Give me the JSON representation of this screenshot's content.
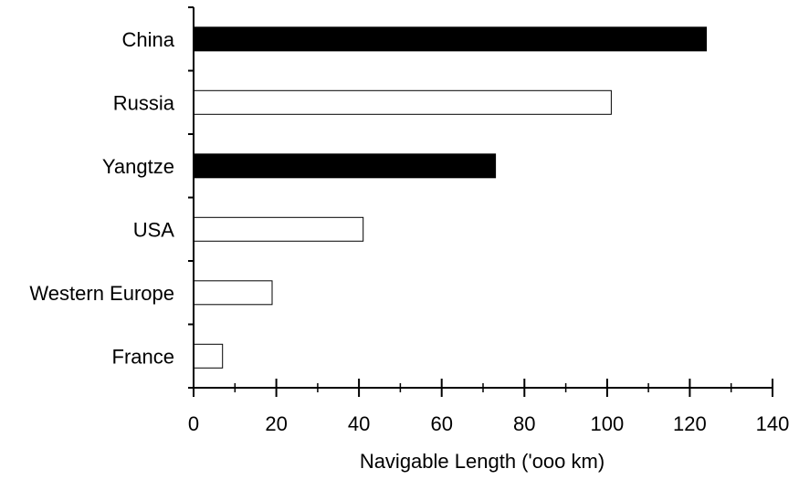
{
  "chart_data": {
    "type": "bar",
    "orientation": "horizontal",
    "categories": [
      "China",
      "Russia",
      "Yangtze",
      "USA",
      "Western Europe",
      "France"
    ],
    "values": [
      124,
      101,
      73,
      41,
      19,
      7
    ],
    "highlighted": [
      "China",
      "Yangtze"
    ],
    "title": "",
    "xlabel": "Navigable Length ('ooo km)",
    "ylabel": "",
    "xlim": [
      0,
      140
    ],
    "xticks": [
      0,
      20,
      40,
      60,
      80,
      100,
      120,
      140
    ],
    "grid": false,
    "legend": "none",
    "colors": {
      "highlight_fill": "#000000",
      "normal_fill": "#ffffff",
      "stroke": "#000000"
    }
  }
}
